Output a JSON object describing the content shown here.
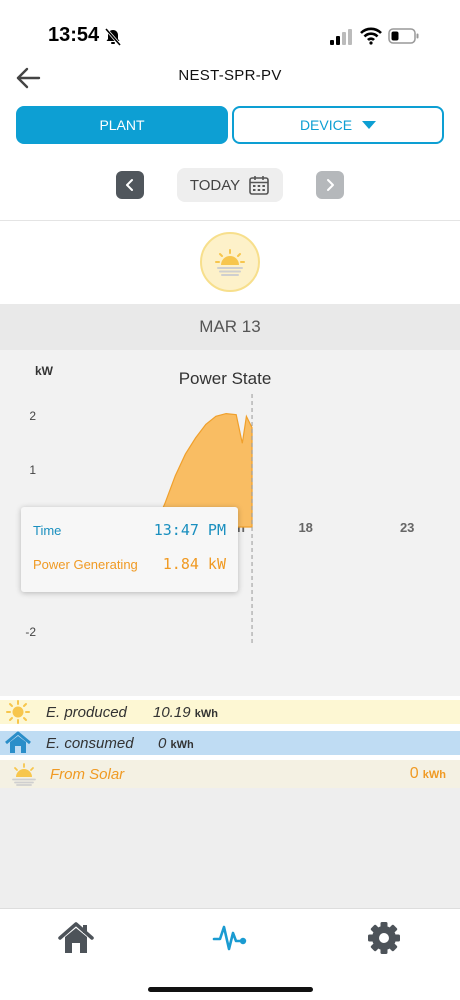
{
  "status_bar": {
    "time": "13:54"
  },
  "header": {
    "title": "NEST-SPR-PV"
  },
  "tabs": [
    {
      "label": "PLANT",
      "active": true
    },
    {
      "label": "DEVICE",
      "active": false
    }
  ],
  "date_nav": {
    "label": "TODAY"
  },
  "date_strip": {
    "label": "MAR 13"
  },
  "chart_data": {
    "type": "area",
    "title": "Power State",
    "ylabel": "kW",
    "xlabel": "",
    "ylim": [
      -2,
      2
    ],
    "y_ticks": [
      "2",
      "1",
      "-2"
    ],
    "x_ticks": [
      "18",
      "23"
    ],
    "x_tick_hidden_fragment": "n",
    "x_hours": [
      9.0,
      9.5,
      10.0,
      10.5,
      11.0,
      11.5,
      12.0,
      12.5,
      13.0,
      13.3,
      13.5,
      13.78
    ],
    "series": [
      {
        "values": [
          0.0,
          0.45,
          0.95,
          1.35,
          1.65,
          1.9,
          2.05,
          2.1,
          2.08,
          1.55,
          2.05,
          1.84
        ]
      }
    ],
    "grid": false,
    "cursor_hour": 13.78,
    "series_color": "#f9bd63",
    "line_color": "#f0a02c"
  },
  "tooltip": {
    "time_label": "Time",
    "time_value": "13:47 PM",
    "power_label": "Power Generating",
    "power_value": "1.84 kW"
  },
  "energy": {
    "produced": {
      "label": "E. produced",
      "value": "10.19",
      "unit": "kWh",
      "icon": "sun-icon"
    },
    "consumed": {
      "label": "E. consumed",
      "value": "0",
      "unit": "kWh",
      "icon": "house-icon"
    },
    "solar": {
      "label": "From Solar",
      "value": "0",
      "unit": "kWh",
      "icon": "sunrise-icon"
    }
  },
  "bottom_nav": [
    {
      "name": "home",
      "icon": "home-icon"
    },
    {
      "name": "chart",
      "icon": "pulse-icon",
      "active": true
    },
    {
      "name": "settings",
      "icon": "gear-icon"
    }
  ],
  "colors": {
    "accent": "#0d9fd3",
    "solar": "#f09a23",
    "chart_fill": "#f9bd63"
  }
}
